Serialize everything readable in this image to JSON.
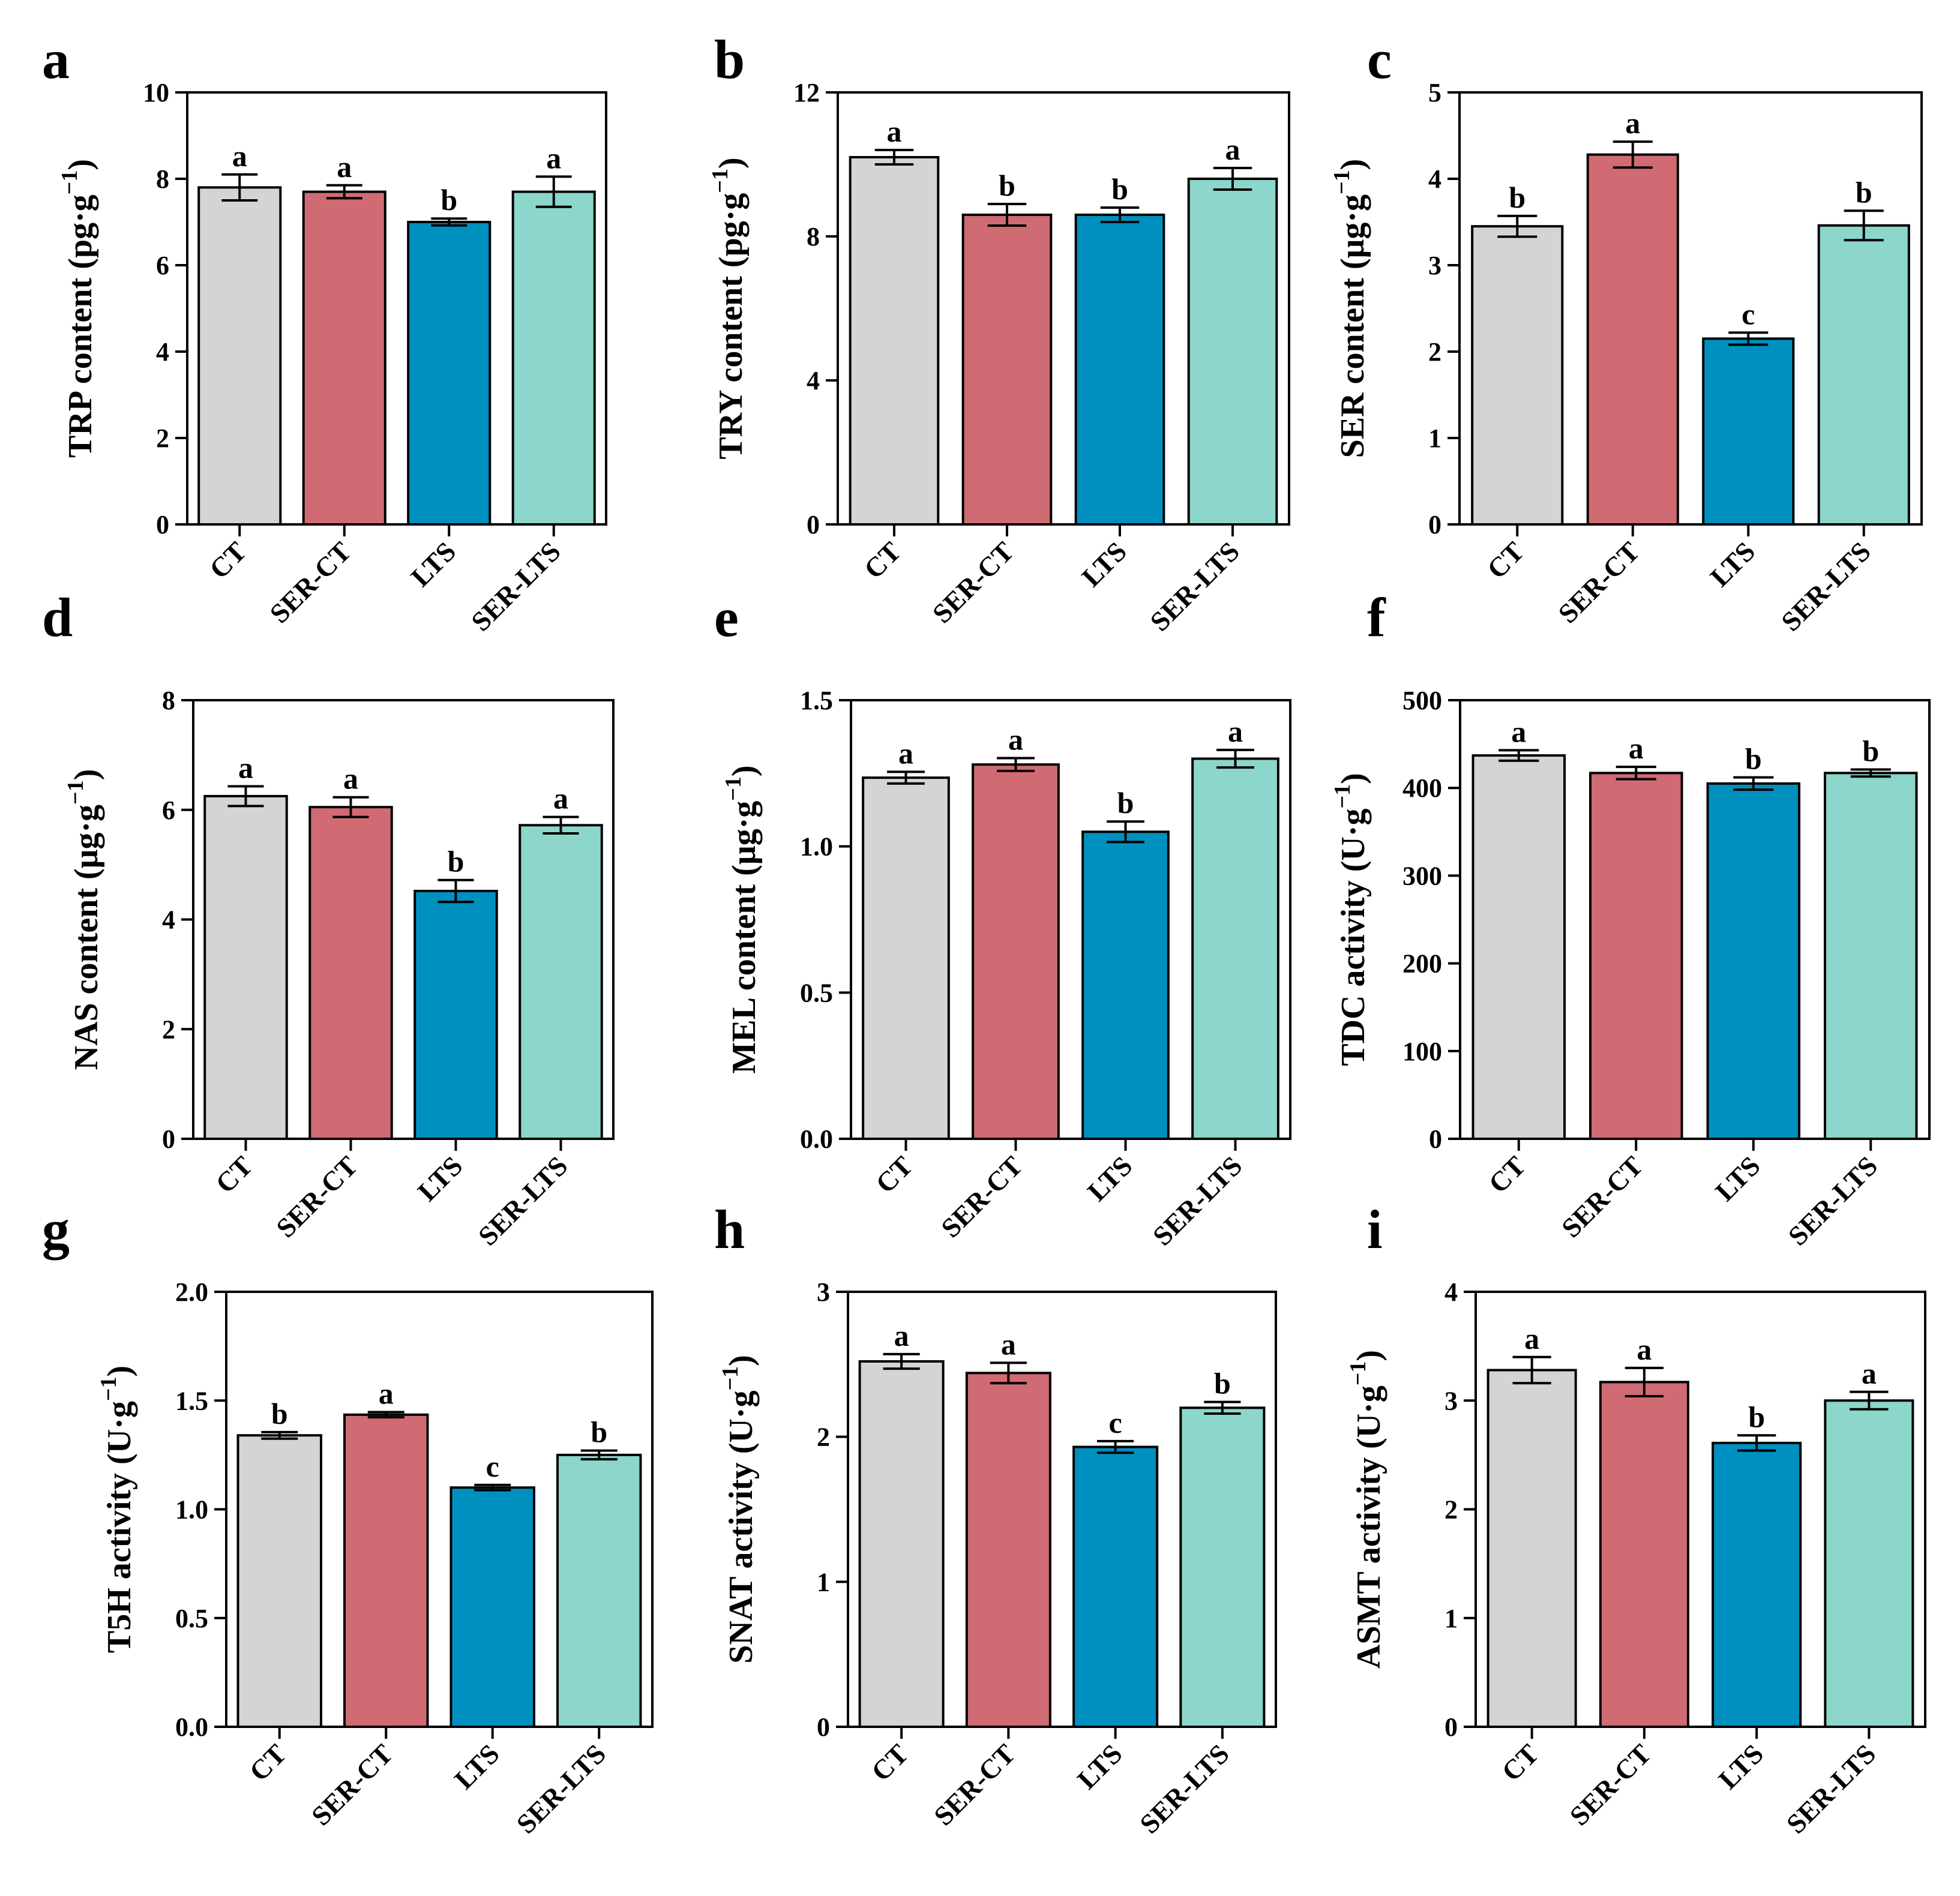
{
  "colors": {
    "CT": "#d4d4d4",
    "SER-CT": "#d06b73",
    "LTS": "#0090bf",
    "SER-LTS": "#8cd6cb",
    "outline": "#000000"
  },
  "chart_data": [
    {
      "panel": "a",
      "type": "bar",
      "categories": [
        "CT",
        "SER-CT",
        "LTS",
        "SER-LTS"
      ],
      "values": [
        7.8,
        7.7,
        7.0,
        7.7
      ],
      "errors": [
        0.3,
        0.15,
        0.08,
        0.35
      ],
      "significance": [
        "a",
        "a",
        "b",
        "a"
      ],
      "ylabel": "TRP content (pg·g",
      "ylabel_sup": "−1",
      "ylabel_close": ")",
      "ylim": [
        0,
        10
      ],
      "ticks": [
        0,
        2,
        4,
        6,
        8,
        10
      ],
      "tick_labels": [
        "0",
        "2",
        "4",
        "6",
        "8",
        "10"
      ]
    },
    {
      "panel": "b",
      "type": "bar",
      "categories": [
        "CT",
        "SER-CT",
        "LTS",
        "SER-LTS"
      ],
      "values": [
        10.2,
        8.6,
        8.6,
        9.6
      ],
      "errors": [
        0.2,
        0.3,
        0.2,
        0.3
      ],
      "significance": [
        "a",
        "b",
        "b",
        "a"
      ],
      "ylabel": "TRY content (pg·g",
      "ylabel_sup": "−1",
      "ylabel_close": ")",
      "ylim": [
        0,
        12
      ],
      "ticks": [
        0,
        4,
        8,
        12
      ],
      "tick_labels": [
        "0",
        "4",
        "8",
        "12"
      ]
    },
    {
      "panel": "c",
      "type": "bar",
      "categories": [
        "CT",
        "SER-CT",
        "LTS",
        "SER-LTS"
      ],
      "values": [
        3.45,
        4.28,
        2.15,
        3.46
      ],
      "errors": [
        0.12,
        0.15,
        0.07,
        0.17
      ],
      "significance": [
        "b",
        "a",
        "c",
        "b"
      ],
      "ylabel": "SER content (μg·g",
      "ylabel_sup": "−1",
      "ylabel_close": ")",
      "ylim": [
        0,
        5
      ],
      "ticks": [
        0,
        1,
        2,
        3,
        4,
        5
      ],
      "tick_labels": [
        "0",
        "1",
        "2",
        "3",
        "4",
        "5"
      ]
    },
    {
      "panel": "d",
      "type": "bar",
      "categories": [
        "CT",
        "SER-CT",
        "LTS",
        "SER-LTS"
      ],
      "values": [
        6.25,
        6.05,
        4.52,
        5.72
      ],
      "errors": [
        0.18,
        0.18,
        0.2,
        0.15
      ],
      "significance": [
        "a",
        "a",
        "b",
        "a"
      ],
      "ylabel": "NAS content (μg·g",
      "ylabel_sup": "−1",
      "ylabel_close": ")",
      "ylim": [
        0,
        8
      ],
      "ticks": [
        0,
        2,
        4,
        6,
        8
      ],
      "tick_labels": [
        "0",
        "2",
        "4",
        "6",
        "8"
      ]
    },
    {
      "panel": "e",
      "type": "bar",
      "categories": [
        "CT",
        "SER-CT",
        "LTS",
        "SER-LTS"
      ],
      "values": [
        1.235,
        1.28,
        1.05,
        1.3
      ],
      "errors": [
        0.02,
        0.022,
        0.035,
        0.03
      ],
      "significance": [
        "a",
        "a",
        "b",
        "a"
      ],
      "ylabel": "MEL content (μg·g",
      "ylabel_sup": "−1",
      "ylabel_close": ")",
      "ylim": [
        0,
        1.5
      ],
      "ticks": [
        0,
        0.5,
        1.0,
        1.5
      ],
      "tick_labels": [
        "0.0",
        "0.5",
        "1.0",
        "1.5"
      ]
    },
    {
      "panel": "f",
      "type": "bar",
      "categories": [
        "CT",
        "SER-CT",
        "LTS",
        "SER-LTS"
      ],
      "values": [
        437,
        417,
        405,
        417
      ],
      "errors": [
        6,
        7,
        7,
        4
      ],
      "significance": [
        "a",
        "a",
        "b",
        "b"
      ],
      "ylabel": "TDC activity (U·g",
      "ylabel_sup": "−1",
      "ylabel_close": ")",
      "ylim": [
        0,
        500
      ],
      "ticks": [
        0,
        100,
        200,
        300,
        400,
        500
      ],
      "tick_labels": [
        "0",
        "100",
        "200",
        "300",
        "400",
        "500"
      ]
    },
    {
      "panel": "g",
      "type": "bar",
      "categories": [
        "CT",
        "SER-CT",
        "LTS",
        "SER-LTS"
      ],
      "values": [
        1.34,
        1.435,
        1.1,
        1.25
      ],
      "errors": [
        0.015,
        0.012,
        0.012,
        0.02
      ],
      "significance": [
        "b",
        "a",
        "c",
        "b"
      ],
      "ylabel": "T5H activity (U·g",
      "ylabel_sup": "−1",
      "ylabel_close": ")",
      "ylim": [
        0,
        2.0
      ],
      "ticks": [
        0,
        0.5,
        1.0,
        1.5,
        2.0
      ],
      "tick_labels": [
        "0.0",
        "0.5",
        "1.0",
        "1.5",
        "2.0"
      ]
    },
    {
      "panel": "h",
      "type": "bar",
      "categories": [
        "CT",
        "SER-CT",
        "LTS",
        "SER-LTS"
      ],
      "values": [
        2.52,
        2.44,
        1.93,
        2.2
      ],
      "errors": [
        0.05,
        0.07,
        0.04,
        0.04
      ],
      "significance": [
        "a",
        "a",
        "c",
        "b"
      ],
      "ylabel": "SNAT activity (U·g",
      "ylabel_sup": "−1",
      "ylabel_close": ")",
      "ylim": [
        0,
        3
      ],
      "ticks": [
        0,
        1,
        2,
        3
      ],
      "tick_labels": [
        "0",
        "1",
        "2",
        "3"
      ]
    },
    {
      "panel": "i",
      "type": "bar",
      "categories": [
        "CT",
        "SER-CT",
        "LTS",
        "SER-LTS"
      ],
      "values": [
        3.28,
        3.17,
        2.61,
        3.0
      ],
      "errors": [
        0.12,
        0.13,
        0.07,
        0.08
      ],
      "significance": [
        "a",
        "a",
        "b",
        "a"
      ],
      "ylabel": "ASMT activity (U·g",
      "ylabel_sup": "−1",
      "ylabel_close": ")",
      "ylim": [
        0,
        4
      ],
      "ticks": [
        0,
        1,
        2,
        3,
        4
      ],
      "tick_labels": [
        "0",
        "1",
        "2",
        "3",
        "4"
      ]
    }
  ]
}
